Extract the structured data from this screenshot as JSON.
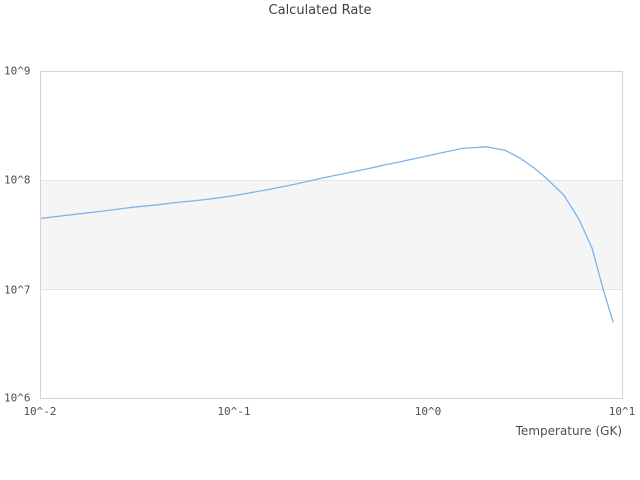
{
  "title": "Calculated Rate",
  "colors": {
    "line": "#7cb5ec",
    "band": "#f5f5f5",
    "grid": "#e4e4e4",
    "border": "#d4d4d4",
    "text": "#4e4e4e",
    "title": "#3f3f3f",
    "background": "#ffffff"
  },
  "chart_data": {
    "type": "line",
    "title": "Calculated Rate",
    "xlabel": "Temperature (GK)",
    "ylabel": "",
    "x_scale": "log",
    "y_scale": "log",
    "xlim": [
      0.01,
      10
    ],
    "ylim": [
      1000000.0,
      1000000000.0
    ],
    "x_ticks": [
      0.01,
      0.1,
      1,
      10
    ],
    "y_ticks": [
      1000000000.0,
      100000000.0,
      10000000.0,
      1000000.0
    ],
    "x_tick_labels": [
      "10^-2",
      "10^-1",
      "10^0",
      "10^1"
    ],
    "y_tick_labels": [
      "10^9",
      "10^8",
      "10^7",
      "10^6"
    ],
    "grid": "horizontal gridlines at decades; alternating shaded band between 1e7 and 1e8",
    "legend": "none",
    "series": [
      {
        "name": "Calculated Rate",
        "x": [
          0.01,
          0.015,
          0.02,
          0.03,
          0.04,
          0.05,
          0.06,
          0.07,
          0.08,
          0.09,
          0.1,
          0.15,
          0.2,
          0.3,
          0.4,
          0.5,
          0.6,
          0.7,
          0.8,
          0.9,
          1.0,
          1.5,
          2.0,
          2.5,
          3.0,
          3.5,
          4.0,
          5.0,
          6.0,
          7.0,
          8.0,
          9.0
        ],
        "y": [
          45000000.0,
          49000000.0,
          52000000.0,
          57000000.0,
          60000000.0,
          63000000.0,
          65000000.0,
          67000000.0,
          69000000.0,
          71000000.0,
          73000000.0,
          83000000.0,
          92000000.0,
          108000000.0,
          120000000.0,
          130000000.0,
          140000000.0,
          148000000.0,
          156000000.0,
          163000000.0,
          170000000.0,
          198000000.0,
          205000000.0,
          190000000.0,
          160000000.0,
          132000000.0,
          108000000.0,
          74000000.0,
          44000000.0,
          24000000.0,
          10000000.0,
          5000000.0
        ]
      }
    ]
  }
}
